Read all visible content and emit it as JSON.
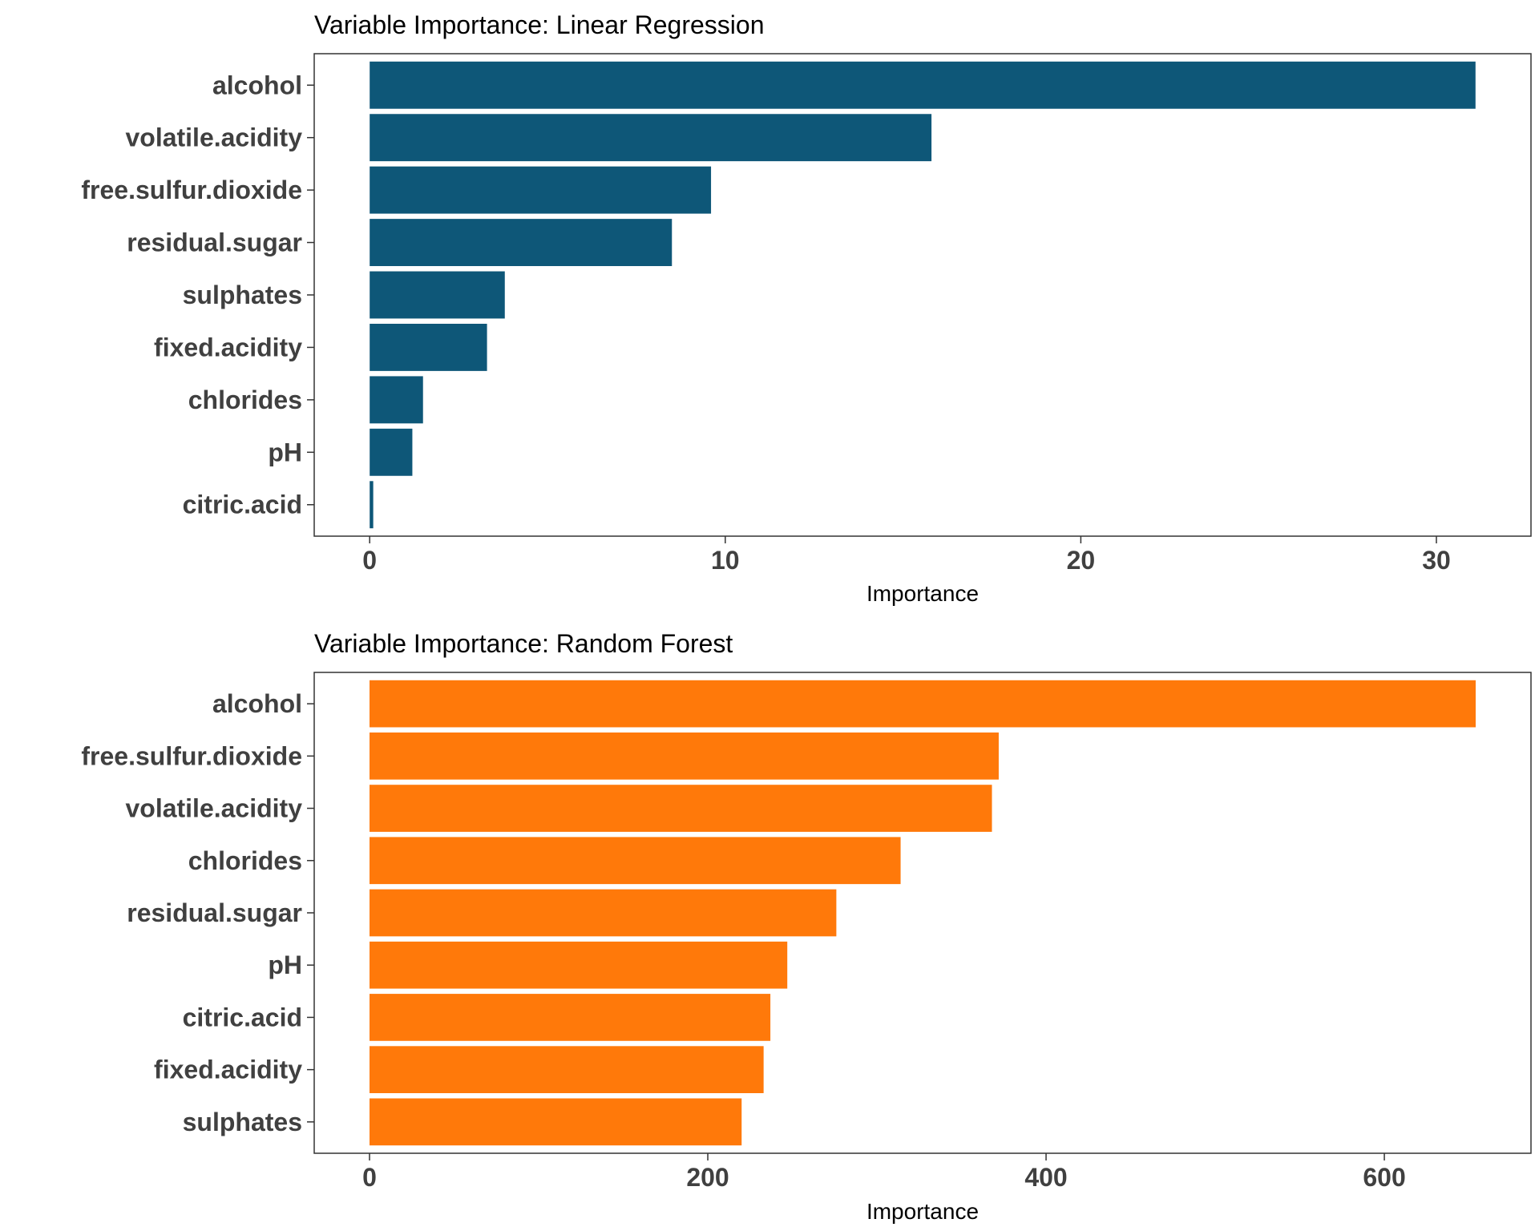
{
  "chart_data": [
    {
      "type": "bar",
      "orientation": "horizontal",
      "title": "Variable Importance: Linear Regression",
      "xlabel": "Importance",
      "ylabel": "",
      "color": "#0E5778",
      "categories": [
        "alcohol",
        "volatile.acidity",
        "free.sulfur.dioxide",
        "residual.sugar",
        "sulphates",
        "fixed.acidity",
        "chlorides",
        "pH",
        "citric.acid"
      ],
      "values": [
        31.1,
        15.8,
        9.6,
        8.5,
        3.8,
        3.3,
        1.5,
        1.2,
        0.1
      ],
      "xlim": [
        -1.56,
        32.66
      ],
      "xticks": [
        0,
        10,
        20,
        30
      ],
      "xtick_labels": [
        "0",
        "10",
        "20",
        "30"
      ],
      "grid": false
    },
    {
      "type": "bar",
      "orientation": "horizontal",
      "title": "Variable Importance: Random Forest",
      "xlabel": "Importance",
      "ylabel": "",
      "color": "#FF790A",
      "categories": [
        "alcohol",
        "free.sulfur.dioxide",
        "volatile.acidity",
        "chlorides",
        "residual.sugar",
        "pH",
        "citric.acid",
        "fixed.acidity",
        "sulphates"
      ],
      "values": [
        654,
        372,
        368,
        314,
        276,
        247,
        237,
        233,
        220
      ],
      "xlim": [
        -32.7,
        686.7
      ],
      "xticks": [
        0,
        200,
        400,
        600
      ],
      "xtick_labels": [
        "0",
        "200",
        "400",
        "600"
      ],
      "grid": false
    }
  ]
}
